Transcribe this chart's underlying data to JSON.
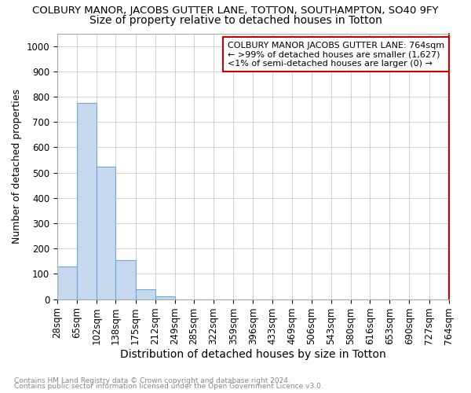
{
  "title": "COLBURY MANOR, JACOBS GUTTER LANE, TOTTON, SOUTHAMPTON, SO40 9FY",
  "subtitle": "Size of property relative to detached houses in Totton",
  "xlabel": "Distribution of detached houses by size in Totton",
  "ylabel": "Number of detached properties",
  "bin_edges": [
    28,
    65,
    102,
    138,
    175,
    212,
    249,
    285,
    322,
    359,
    396,
    433,
    469,
    506,
    543,
    580,
    616,
    653,
    690,
    727,
    764
  ],
  "bar_heights": [
    130,
    775,
    525,
    155,
    40,
    10,
    0,
    0,
    0,
    0,
    0,
    0,
    0,
    0,
    0,
    0,
    0,
    0,
    0,
    0
  ],
  "bar_color": "#c5d8ee",
  "bar_edge_color": "#6aaad4",
  "annotation_title": "COLBURY MANOR JACOBS GUTTER LANE: 764sqm",
  "annotation_line2": "← >99% of detached houses are smaller (1,627)",
  "annotation_line3": "<1% of semi-detached houses are larger (0) →",
  "annotation_box_color": "#ffffff",
  "annotation_box_edge": "#cc0000",
  "ylim": [
    0,
    1050
  ],
  "yticks": [
    0,
    100,
    200,
    300,
    400,
    500,
    600,
    700,
    800,
    900,
    1000
  ],
  "grid_color": "#cccccc",
  "title_fontsize": 9.5,
  "subtitle_fontsize": 10,
  "xlabel_fontsize": 10,
  "ylabel_fontsize": 9,
  "tick_fontsize": 8.5,
  "annotation_fontsize": 8,
  "footer_line1": "Contains HM Land Registry data © Crown copyright and database right 2024.",
  "footer_line2": "Contains public sector information licensed under the Open Government Licence v3.0.",
  "right_border_color": "#cc0000",
  "background_color": "#ffffff"
}
